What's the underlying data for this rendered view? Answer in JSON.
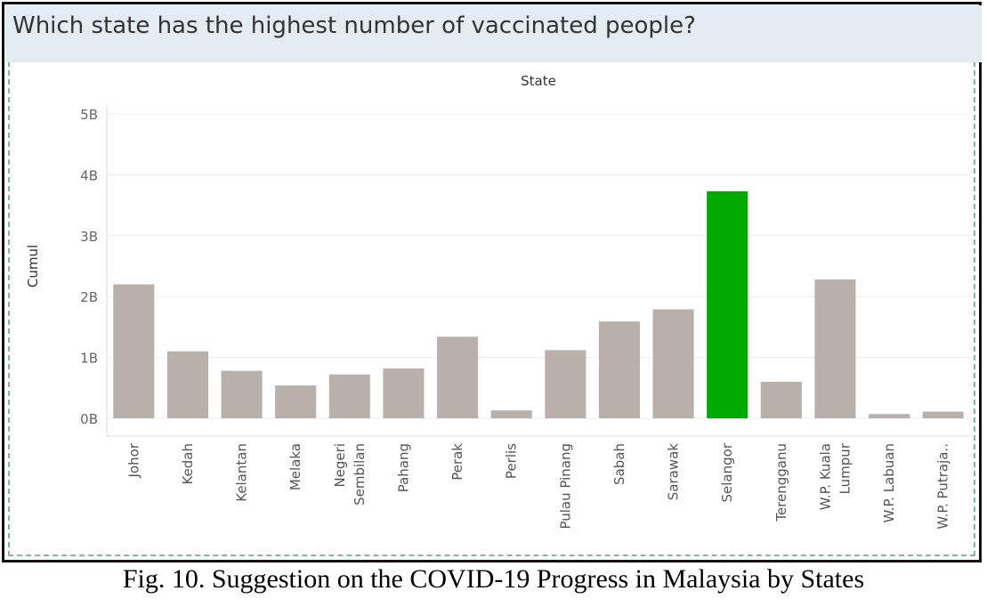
{
  "title": "Which state has the highest number of vaccinated people?",
  "caption": "Fig. 10.  Suggestion on the COVID-19 Progress in Malaysia by States",
  "colors": {
    "bar": "#bab0ab",
    "highlight": "#00aa00",
    "header": "#e3ebf3"
  },
  "chart_data": {
    "type": "bar",
    "xlabel": "State",
    "ylabel": "Cumul",
    "ylim": [
      0,
      5000000000
    ],
    "yticks": [
      0,
      1000000000,
      2000000000,
      3000000000,
      4000000000,
      5000000000
    ],
    "ytick_labels": [
      "0B",
      "1B",
      "2B",
      "3B",
      "4B",
      "5B"
    ],
    "grid": true,
    "categories": [
      "Johor",
      "Kedah",
      "Kelantan",
      "Melaka",
      "Negeri Sembilan",
      "Pahang",
      "Perak",
      "Perlis",
      "Pulau Pinang",
      "Sabah",
      "Sarawak",
      "Selangor",
      "Terengganu",
      "W.P. Kuala Lumpur",
      "W.P. Labuan",
      "W.P. Putraja.."
    ],
    "category_lines": [
      [
        "Johor"
      ],
      [
        "Kedah"
      ],
      [
        "Kelantan"
      ],
      [
        "Melaka"
      ],
      [
        "Negeri",
        "Sembilan"
      ],
      [
        "Pahang"
      ],
      [
        "Perak"
      ],
      [
        "Perlis"
      ],
      [
        "Pulau Pinang"
      ],
      [
        "Sabah"
      ],
      [
        "Sarawak"
      ],
      [
        "Selangor"
      ],
      [
        "Terengganu"
      ],
      [
        "W.P. Kuala",
        "Lumpur"
      ],
      [
        "W.P. Labuan"
      ],
      [
        "W.P. Putraja.."
      ]
    ],
    "values": [
      2200000000,
      1100000000,
      780000000,
      540000000,
      720000000,
      820000000,
      1340000000,
      130000000,
      1120000000,
      1590000000,
      1790000000,
      3730000000,
      600000000,
      2280000000,
      70000000,
      110000000
    ],
    "highlight": "Selangor"
  }
}
